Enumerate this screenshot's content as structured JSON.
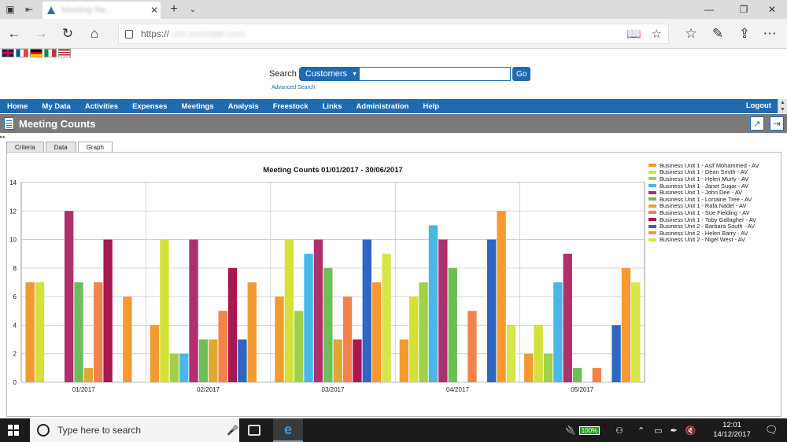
{
  "browser": {
    "tab_title": "Meeting Re...",
    "address_proto": "https://",
    "address_host": "crm.example.com"
  },
  "search": {
    "label": "Search",
    "category": "Customers",
    "go_label": "Go",
    "advanced_label": "Advanced Search"
  },
  "menu": {
    "items": [
      "Home",
      "My Data",
      "Activities",
      "Expenses",
      "Meetings",
      "Analysis",
      "Freestock",
      "Links",
      "Administration",
      "Help"
    ],
    "logout": "Logout"
  },
  "page": {
    "title": "Meeting Counts",
    "tabs": [
      "Criteria",
      "Data",
      "Graph"
    ],
    "active_tab": "Graph"
  },
  "chart_data": {
    "type": "bar",
    "title": "Meeting Counts 01/01/2017 - 30/06/2017",
    "categories": [
      "01/2017",
      "02/2017",
      "03/2017",
      "04/2017",
      "05/2017"
    ],
    "ylim": [
      0,
      14
    ],
    "yticks": [
      0,
      2,
      4,
      6,
      8,
      10,
      12,
      14
    ],
    "grid": true,
    "legend_position": "right",
    "series": [
      {
        "name": "Business Unit 1 - Asif Mohammed - AV",
        "color": "#f29a2e",
        "values": [
          7,
          4,
          6,
          3,
          2
        ]
      },
      {
        "name": "Business Unit 1 - Dean Smith - AV",
        "color": "#d5e03a",
        "values": [
          7,
          10,
          10,
          6,
          4
        ]
      },
      {
        "name": "Business Unit 1 - Helen Murty - AV",
        "color": "#9fd14a",
        "values": [
          0,
          2,
          5,
          7,
          2
        ]
      },
      {
        "name": "Business Unit 1 - Janet Sugar - AV",
        "color": "#47b8e8",
        "values": [
          0,
          2,
          9,
          11,
          7
        ]
      },
      {
        "name": "Business Unit 1 - John Dee - AV",
        "color": "#b0306e",
        "values": [
          12,
          10,
          10,
          10,
          9
        ]
      },
      {
        "name": "Business Unit 1 - Lorraine Tree - AV",
        "color": "#6cbf58",
        "values": [
          7,
          3,
          8,
          8,
          1
        ]
      },
      {
        "name": "Business Unit 1 - Rafa Nadel - AV",
        "color": "#e0a830",
        "values": [
          1,
          3,
          3,
          0,
          0
        ]
      },
      {
        "name": "Business Unit 1 - Sue Fielding - AV",
        "color": "#f5824a",
        "values": [
          7,
          5,
          6,
          5,
          1
        ]
      },
      {
        "name": "Business Unit 1 - Toby Gallagher - AV",
        "color": "#a8174f",
        "values": [
          10,
          8,
          3,
          0,
          0
        ]
      },
      {
        "name": "Business Unit 2 - Barbara South - AV",
        "color": "#2e66c4",
        "values": [
          0,
          3,
          10,
          10,
          4
        ]
      },
      {
        "name": "Business Unit 2 - Helen Barry - AV",
        "color": "#f59a30",
        "values": [
          6,
          7,
          7,
          12,
          8
        ]
      },
      {
        "name": "Business Unit 2 - Nigel West - AV",
        "color": "#d8e54a",
        "values": [
          0,
          0,
          9,
          4,
          7
        ]
      }
    ]
  },
  "taskbar": {
    "search_placeholder": "Type here to search",
    "battery": "100%",
    "time": "12:01",
    "date": "14/12/2017"
  },
  "icons": {
    "back": "arrow-left-icon",
    "forward": "arrow-right-icon",
    "refresh": "refresh-icon",
    "home": "home-icon"
  }
}
